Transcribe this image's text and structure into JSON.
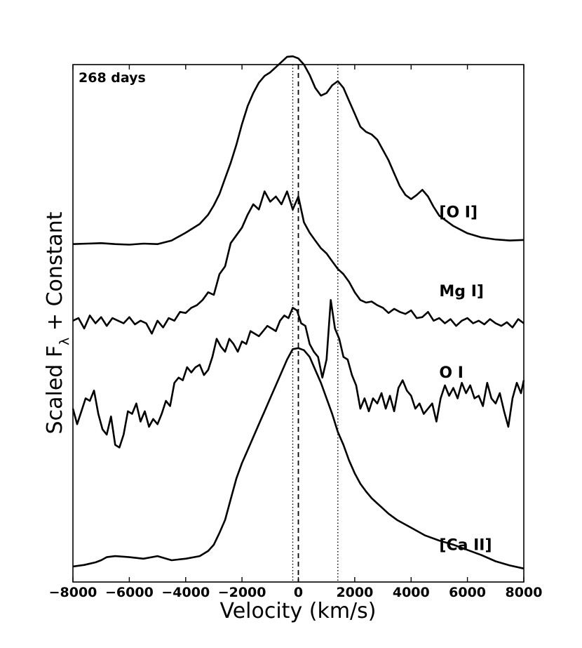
{
  "chart_data": {
    "type": "line",
    "epoch_label": "268 days",
    "xlabel": "Velocity (km/s)",
    "ylabel": "Scaled F",
    "ylabel_subscript": "λ",
    "ylabel_suffix": " + Constant",
    "xlim": [
      -8000,
      8000
    ],
    "ylim": [
      0,
      10
    ],
    "xticks": [
      -8000,
      -6000,
      -4000,
      -2000,
      0,
      2000,
      4000,
      6000,
      8000
    ],
    "xtick_labels": [
      "−8000",
      "−6000",
      "−4000",
      "−2000",
      "0",
      "2000",
      "4000",
      "6000",
      "8000"
    ],
    "reference_lines": [
      {
        "name": "rest-velocity",
        "x": 0,
        "style": "dashed"
      },
      {
        "name": "peak-left",
        "x": -200,
        "style": "dotted"
      },
      {
        "name": "peak-right",
        "x": 1400,
        "style": "dotted"
      }
    ],
    "series": [
      {
        "name": "[O I]",
        "x": [
          -8000,
          -7500,
          -7000,
          -6500,
          -6000,
          -5500,
          -5000,
          -4500,
          -4000,
          -3500,
          -3200,
          -3000,
          -2800,
          -2600,
          -2400,
          -2200,
          -2000,
          -1800,
          -1600,
          -1400,
          -1200,
          -1000,
          -800,
          -600,
          -400,
          -200,
          0,
          200,
          400,
          600,
          800,
          1000,
          1200,
          1400,
          1600,
          1800,
          2000,
          2200,
          2400,
          2600,
          2800,
          3000,
          3200,
          3400,
          3600,
          3800,
          4000,
          4200,
          4400,
          4600,
          4800,
          5000,
          5500,
          6000,
          6500,
          7000,
          7500,
          8000
        ],
        "y": [
          6.53,
          6.54,
          6.55,
          6.53,
          6.52,
          6.54,
          6.53,
          6.6,
          6.75,
          6.92,
          7.1,
          7.28,
          7.5,
          7.8,
          8.1,
          8.45,
          8.85,
          9.2,
          9.45,
          9.65,
          9.78,
          9.85,
          9.95,
          10.05,
          10.15,
          10.16,
          10.12,
          10.0,
          9.8,
          9.55,
          9.4,
          9.45,
          9.6,
          9.68,
          9.55,
          9.3,
          9.05,
          8.8,
          8.7,
          8.65,
          8.55,
          8.35,
          8.15,
          7.9,
          7.65,
          7.48,
          7.4,
          7.48,
          7.58,
          7.45,
          7.25,
          7.08,
          6.88,
          6.74,
          6.66,
          6.62,
          6.6,
          6.61
        ],
        "label_pos": [
          5000,
          7.05
        ]
      },
      {
        "name": "Mg I]",
        "x": [
          -8000,
          -7800,
          -7600,
          -7400,
          -7200,
          -7000,
          -6800,
          -6600,
          -6400,
          -6200,
          -6000,
          -5800,
          -5600,
          -5400,
          -5200,
          -5000,
          -4800,
          -4600,
          -4400,
          -4200,
          -4000,
          -3800,
          -3600,
          -3400,
          -3200,
          -3000,
          -2800,
          -2600,
          -2400,
          -2200,
          -2000,
          -1800,
          -1600,
          -1400,
          -1200,
          -1000,
          -800,
          -600,
          -400,
          -200,
          0,
          200,
          400,
          600,
          800,
          1000,
          1200,
          1400,
          1600,
          1800,
          2000,
          2200,
          2400,
          2600,
          2800,
          3000,
          3200,
          3400,
          3600,
          3800,
          4000,
          4200,
          4400,
          4600,
          4800,
          5000,
          5200,
          5400,
          5600,
          5800,
          6000,
          6200,
          6400,
          6600,
          6800,
          7000,
          7200,
          7400,
          7600,
          7800,
          8000
        ],
        "y": [
          5.05,
          5.1,
          4.9,
          5.15,
          5.0,
          5.12,
          4.95,
          5.1,
          5.05,
          5.0,
          5.12,
          4.98,
          5.05,
          5.0,
          4.8,
          5.05,
          4.92,
          5.1,
          5.05,
          5.22,
          5.2,
          5.3,
          5.35,
          5.45,
          5.6,
          5.55,
          5.95,
          6.1,
          6.55,
          6.7,
          6.85,
          7.1,
          7.3,
          7.2,
          7.55,
          7.35,
          7.45,
          7.3,
          7.55,
          7.2,
          7.45,
          6.95,
          6.75,
          6.6,
          6.45,
          6.35,
          6.2,
          6.05,
          5.95,
          5.8,
          5.6,
          5.45,
          5.4,
          5.42,
          5.35,
          5.3,
          5.2,
          5.28,
          5.22,
          5.18,
          5.25,
          5.1,
          5.12,
          5.22,
          5.05,
          5.1,
          5.0,
          5.08,
          4.95,
          5.05,
          5.1,
          5.0,
          5.05,
          4.98,
          5.08,
          5.0,
          4.95,
          5.02,
          4.92,
          5.08,
          5.0
        ],
        "label_pos": [
          5000,
          5.52
        ]
      },
      {
        "name": "O I",
        "x": [
          -8000,
          -7850,
          -7700,
          -7550,
          -7400,
          -7250,
          -7100,
          -6950,
          -6800,
          -6650,
          -6500,
          -6350,
          -6200,
          -6050,
          -5900,
          -5750,
          -5600,
          -5450,
          -5300,
          -5150,
          -5000,
          -4850,
          -4700,
          -4550,
          -4400,
          -4250,
          -4100,
          -3950,
          -3800,
          -3650,
          -3500,
          -3350,
          -3200,
          -3050,
          -2900,
          -2750,
          -2600,
          -2450,
          -2300,
          -2150,
          -2000,
          -1850,
          -1700,
          -1550,
          -1400,
          -1250,
          -1100,
          -950,
          -800,
          -650,
          -500,
          -350,
          -200,
          -50,
          100,
          250,
          400,
          550,
          700,
          850,
          1000,
          1150,
          1300,
          1450,
          1600,
          1750,
          1900,
          2050,
          2200,
          2350,
          2500,
          2650,
          2800,
          2950,
          3100,
          3250,
          3400,
          3550,
          3700,
          3850,
          4000,
          4150,
          4300,
          4450,
          4600,
          4750,
          4900,
          5050,
          5200,
          5350,
          5500,
          5650,
          5800,
          5950,
          6100,
          6250,
          6400,
          6550,
          6700,
          6850,
          7000,
          7150,
          7300,
          7450,
          7600,
          7750,
          7900,
          8000
        ],
        "y": [
          3.35,
          3.05,
          3.3,
          3.55,
          3.5,
          3.7,
          3.25,
          2.95,
          2.85,
          3.2,
          2.65,
          2.6,
          2.85,
          3.3,
          3.25,
          3.45,
          3.1,
          3.3,
          3.0,
          3.15,
          3.05,
          3.25,
          3.5,
          3.4,
          3.85,
          3.95,
          3.9,
          4.15,
          4.05,
          4.15,
          4.2,
          4.0,
          4.1,
          4.35,
          4.7,
          4.55,
          4.45,
          4.7,
          4.6,
          4.45,
          4.65,
          4.6,
          4.85,
          4.8,
          4.75,
          4.85,
          4.95,
          4.9,
          4.85,
          5.05,
          5.15,
          5.1,
          5.3,
          5.25,
          5.0,
          4.95,
          4.6,
          4.45,
          4.35,
          3.95,
          4.3,
          5.45,
          4.9,
          4.7,
          4.35,
          4.3,
          4.0,
          3.8,
          3.35,
          3.55,
          3.3,
          3.55,
          3.45,
          3.65,
          3.35,
          3.6,
          3.3,
          3.75,
          3.9,
          3.7,
          3.6,
          3.35,
          3.45,
          3.25,
          3.35,
          3.45,
          3.1,
          3.55,
          3.8,
          3.6,
          3.75,
          3.55,
          3.85,
          3.65,
          3.8,
          3.55,
          3.6,
          3.4,
          3.85,
          3.55,
          3.45,
          3.65,
          3.3,
          3.0,
          3.55,
          3.85,
          3.65,
          3.9
        ],
        "label_pos": [
          5000,
          3.95
        ]
      },
      {
        "name": "[Ca II]",
        "x": [
          -8000,
          -7600,
          -7200,
          -7000,
          -6800,
          -6500,
          -6000,
          -5500,
          -5000,
          -4500,
          -4000,
          -3500,
          -3200,
          -3000,
          -2800,
          -2600,
          -2400,
          -2200,
          -2000,
          -1800,
          -1600,
          -1400,
          -1200,
          -1000,
          -800,
          -600,
          -400,
          -200,
          0,
          200,
          400,
          600,
          800,
          1000,
          1200,
          1400,
          1600,
          1800,
          2000,
          2200,
          2400,
          2600,
          2800,
          3000,
          3200,
          3500,
          4000,
          4500,
          5000,
          5500,
          6000,
          6500,
          7000,
          7500,
          8000
        ],
        "y": [
          0.3,
          0.33,
          0.38,
          0.42,
          0.48,
          0.5,
          0.48,
          0.45,
          0.5,
          0.42,
          0.45,
          0.5,
          0.6,
          0.72,
          0.95,
          1.2,
          1.6,
          2.0,
          2.3,
          2.55,
          2.8,
          3.05,
          3.3,
          3.55,
          3.8,
          4.05,
          4.3,
          4.5,
          4.52,
          4.48,
          4.35,
          4.1,
          3.85,
          3.55,
          3.25,
          2.9,
          2.65,
          2.35,
          2.1,
          1.9,
          1.75,
          1.62,
          1.52,
          1.42,
          1.32,
          1.2,
          1.05,
          0.9,
          0.8,
          0.72,
          0.62,
          0.52,
          0.4,
          0.32,
          0.26
        ],
        "label_pos": [
          5000,
          0.62
        ]
      }
    ]
  }
}
